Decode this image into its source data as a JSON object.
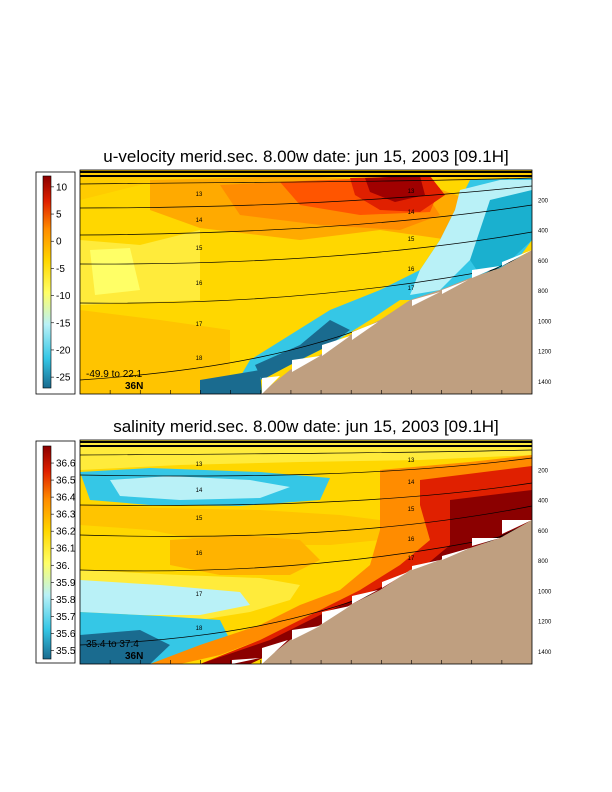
{
  "chart_data": [
    {
      "type": "heatmap",
      "title": "u-velocity merid.sec.  8.00w   date: jun 15, 2003   [09.1H]",
      "colorbar_ticks": [
        "10",
        "5",
        "0",
        "-5",
        "-10",
        "-15",
        "-20",
        "-25"
      ],
      "colorbar_range": [
        -27,
        12
      ],
      "yticks": [
        "200",
        "400",
        "600",
        "800",
        "1000",
        "1200",
        "1400"
      ],
      "ylim": [
        0,
        1480
      ],
      "isopycnal_labels": [
        "13",
        "14",
        "15",
        "16",
        "17",
        "18"
      ],
      "range_note": "-49.9 to  22.1",
      "lat_note": "36N",
      "colors": [
        "#1a6b8f",
        "#35c7e6",
        "#b9f1f7",
        "#ffff66",
        "#ffd700",
        "#ff8c00",
        "#e02000",
        "#8b0000"
      ]
    },
    {
      "type": "heatmap",
      "title": "salinity merid.sec.  8.00w   date: jun 15, 2003   [09.1H]",
      "colorbar_ticks": [
        "36.6",
        "36.5",
        "36.4",
        "36.3",
        "36.2",
        "36.1",
        "36.",
        "35.9",
        "35.8",
        "35.7",
        "35.6",
        "35.5"
      ],
      "colorbar_range": [
        35.45,
        36.7
      ],
      "yticks": [
        "200",
        "400",
        "600",
        "800",
        "1000",
        "1200",
        "1400"
      ],
      "ylim": [
        0,
        1480
      ],
      "isopycnal_labels": [
        "13",
        "14",
        "15",
        "16",
        "17",
        "18"
      ],
      "range_note": "35.4  to  37.4",
      "lat_note": "36N",
      "colors": [
        "#1a6b8f",
        "#35c7e6",
        "#b9f1f7",
        "#ffff66",
        "#ffd700",
        "#ff8c00",
        "#e02000",
        "#8b0000"
      ]
    }
  ],
  "bathymetry_color": "#bf9f80"
}
